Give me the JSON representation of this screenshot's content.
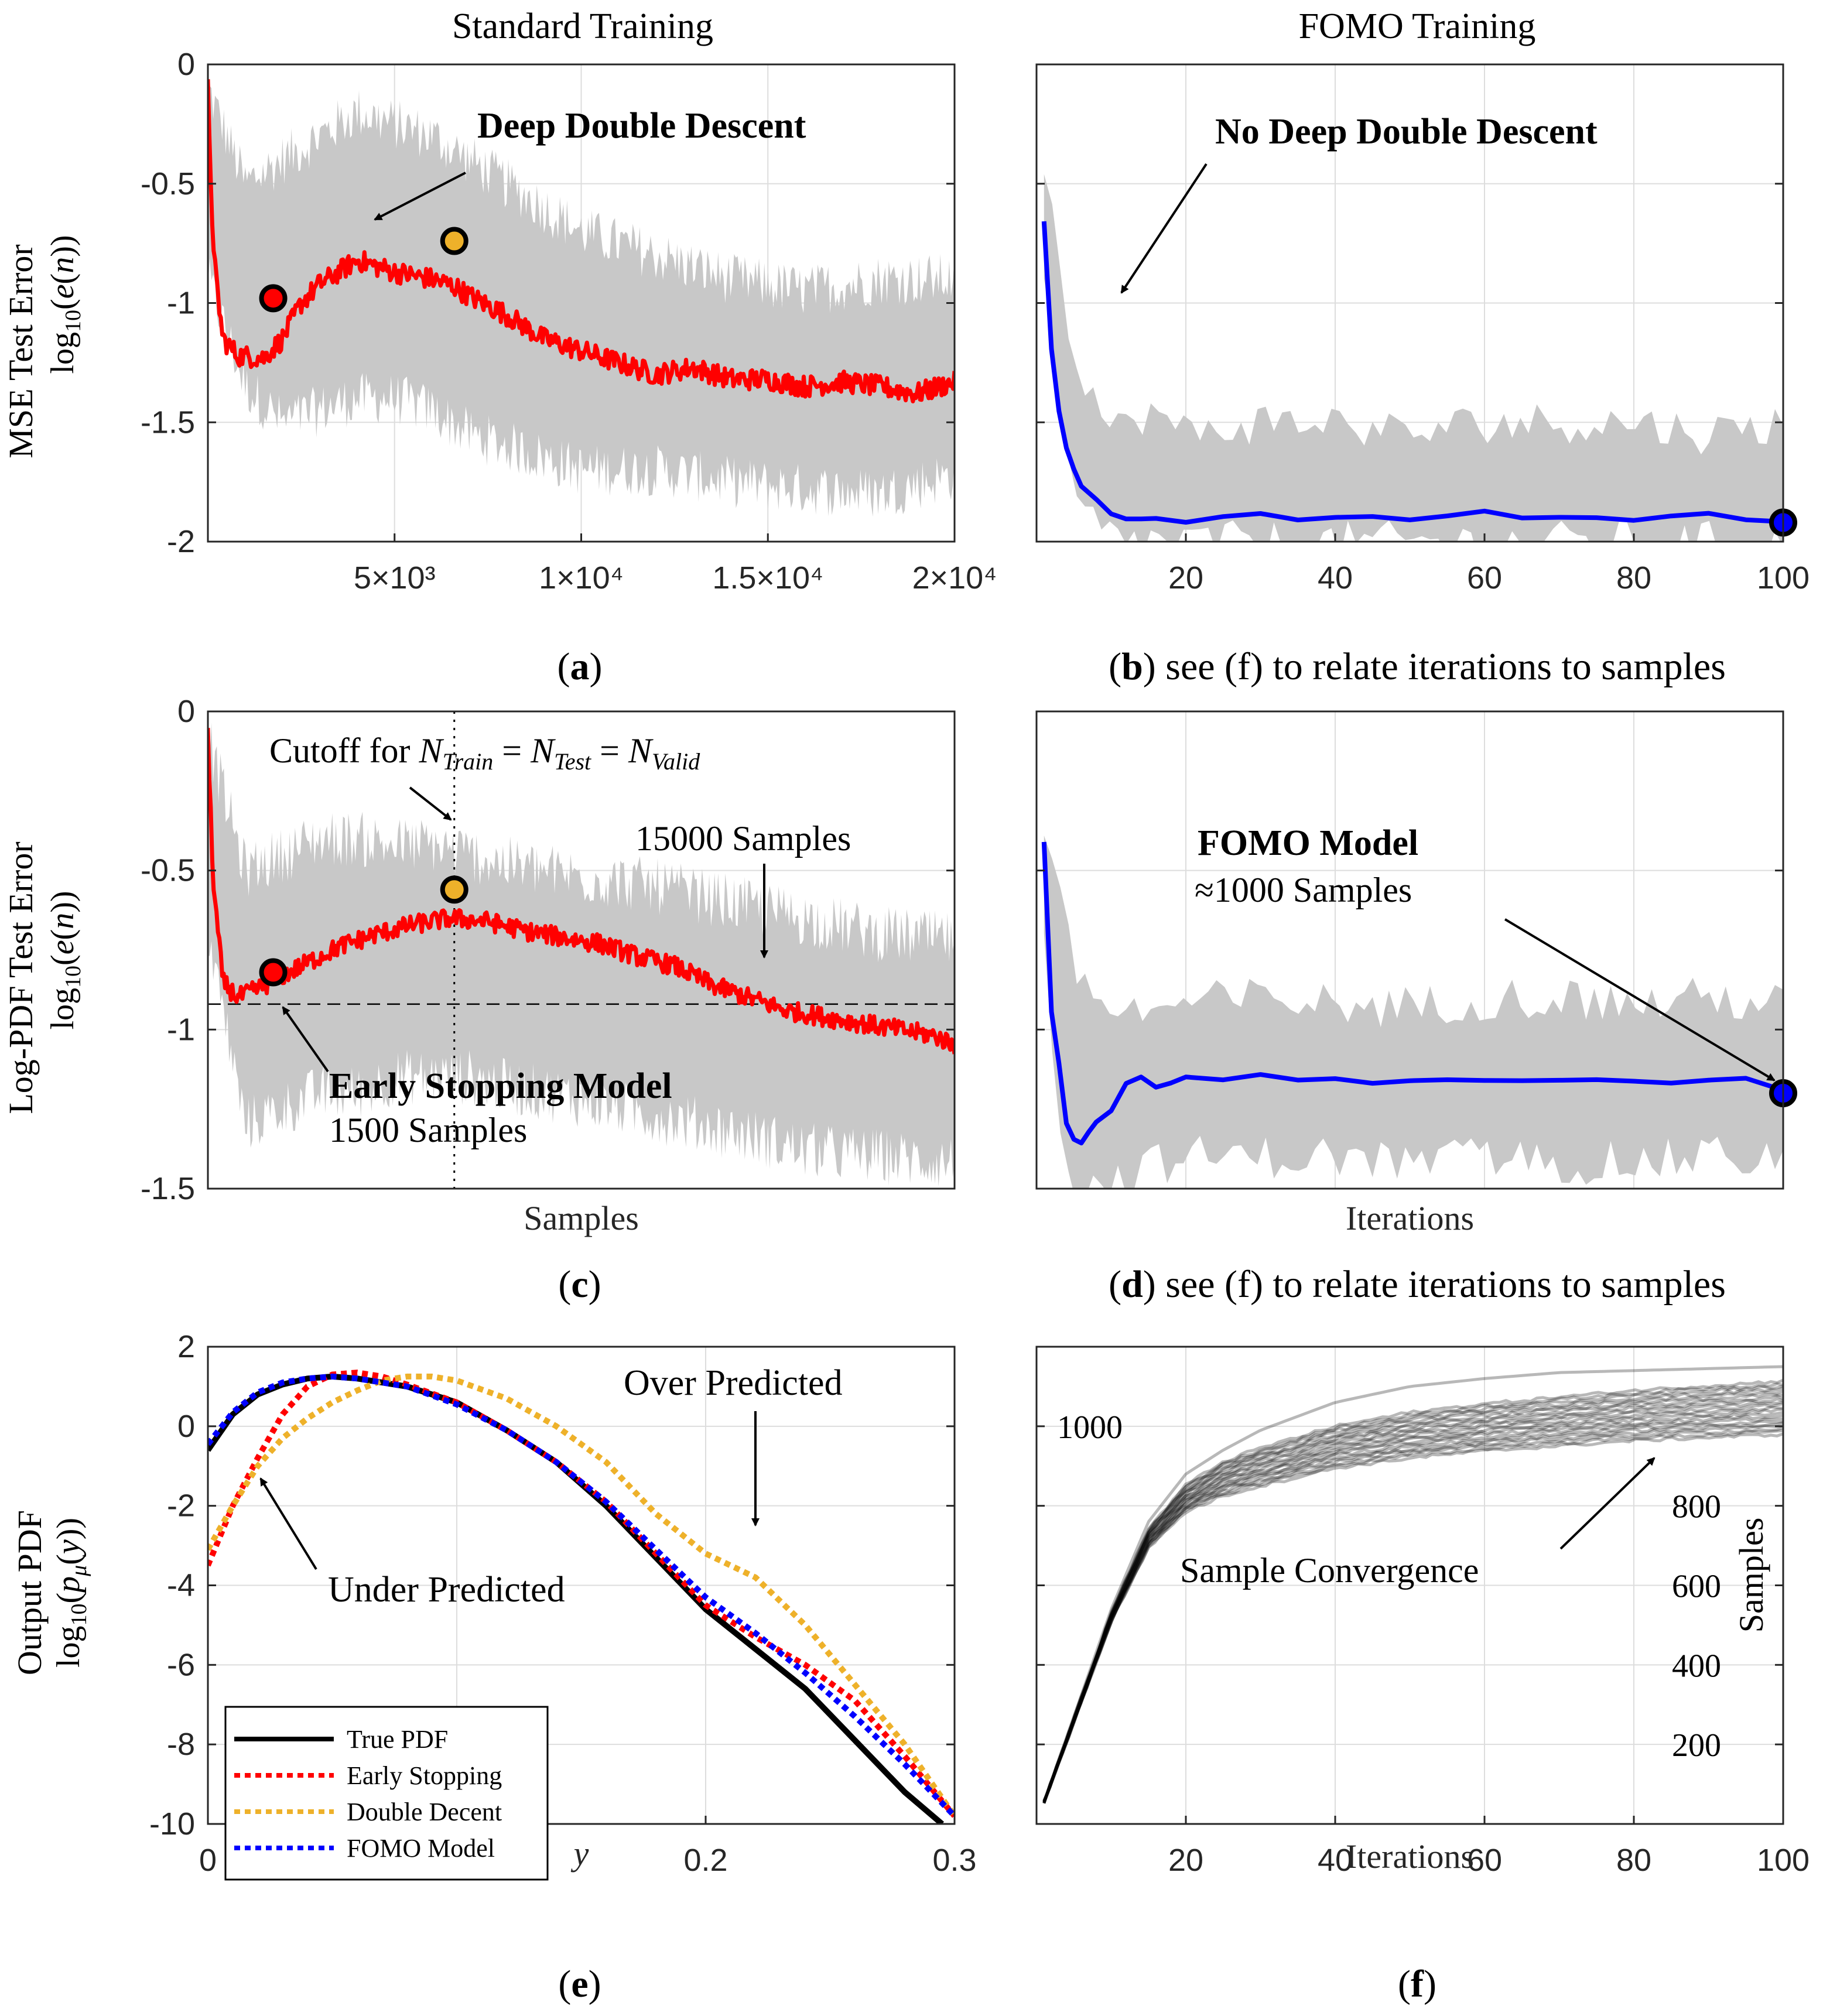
{
  "columns": {
    "left_title": "Standard Training",
    "right_title": "FOMO Training"
  },
  "colors": {
    "red": "#ff0000",
    "blue": "#0000ff",
    "orange": "#eeb12a",
    "gray_band": "#c8c8c8",
    "black": "#000000",
    "grid": "#dddddd"
  },
  "chart_data": [
    {
      "id": "a",
      "type": "line",
      "title": "",
      "ylabel_line1": "MSE Test Error",
      "ylabel_line2": "log10(e(n))",
      "xlabel": "",
      "xlim": [
        0,
        20000
      ],
      "ylim": [
        -2,
        0
      ],
      "yticks": [
        "0",
        "-0.5",
        "-1",
        "-1.5",
        "-2"
      ],
      "yticks_values": [
        0,
        -0.5,
        -1,
        -1.5,
        -2
      ],
      "xticks": [
        "5×10³",
        "1×10⁴",
        "1.5×10⁴",
        "2×10⁴"
      ],
      "xticks_values": [
        5000,
        10000,
        15000,
        20000
      ],
      "series": [
        {
          "name": "Standard training MSE",
          "color": "#ff0000",
          "x": [
            0,
            150,
            400,
            800,
            1500,
            2000,
            2500,
            3000,
            4000,
            5000,
            6000,
            6600,
            7000,
            8000,
            9000,
            10000,
            11000,
            12000,
            13000,
            14000,
            15000,
            16000,
            17000,
            18000,
            19000,
            20000
          ],
          "y": [
            -0.1,
            -0.8,
            -1.15,
            -1.22,
            -1.23,
            -1.15,
            -1.0,
            -0.92,
            -0.82,
            -0.87,
            -0.9,
            -0.93,
            -0.97,
            -1.05,
            -1.15,
            -1.2,
            -1.25,
            -1.3,
            -1.27,
            -1.32,
            -1.32,
            -1.35,
            -1.33,
            -1.35,
            -1.38,
            -1.33
          ]
        }
      ],
      "band": {
        "x": [
          0,
          1000,
          2000,
          3000,
          4000,
          5000,
          6000,
          7000,
          8000,
          9000,
          10000,
          12000,
          14000,
          16000,
          18000,
          20000
        ],
        "upper": [
          -0.1,
          -0.5,
          -0.4,
          -0.3,
          -0.2,
          -0.25,
          -0.3,
          -0.4,
          -0.5,
          -0.6,
          -0.7,
          -0.8,
          -0.9,
          -0.95,
          -0.9,
          -0.9
        ],
        "lower": [
          -0.9,
          -1.35,
          -1.5,
          -1.45,
          -1.4,
          -1.4,
          -1.45,
          -1.55,
          -1.6,
          -1.65,
          -1.7,
          -1.7,
          -1.75,
          -1.78,
          -1.8,
          -1.72
        ]
      },
      "markers": [
        {
          "x": 1750,
          "y": -0.98,
          "color": "#ff0000"
        },
        {
          "x": 6600,
          "y": -0.74,
          "color": "#eeb12a"
        }
      ],
      "annotations": [
        {
          "text": "Deep Double Descent",
          "bold": true
        }
      ]
    },
    {
      "id": "b",
      "type": "line",
      "ylabel_line1": "",
      "xlabel": "",
      "xlim": [
        0,
        100
      ],
      "ylim": [
        -2,
        0
      ],
      "xticks": [
        "20",
        "40",
        "60",
        "80",
        "100"
      ],
      "xticks_values": [
        20,
        40,
        60,
        80,
        100
      ],
      "series": [
        {
          "name": "FOMO MSE",
          "color": "#0000ff",
          "x": [
            1,
            2,
            3,
            4,
            5,
            6,
            8,
            10,
            12,
            14,
            16,
            20,
            25,
            30,
            35,
            40,
            45,
            50,
            55,
            60,
            65,
            70,
            75,
            80,
            85,
            90,
            95,
            100
          ],
          "y": [
            -0.65,
            -1.2,
            -1.45,
            -1.6,
            -1.7,
            -1.76,
            -1.83,
            -1.88,
            -1.9,
            -1.91,
            -1.9,
            -1.91,
            -1.9,
            -1.89,
            -1.9,
            -1.9,
            -1.89,
            -1.91,
            -1.89,
            -1.88,
            -1.9,
            -1.9,
            -1.89,
            -1.91,
            -1.9,
            -1.89,
            -1.9,
            -1.91
          ]
        }
      ],
      "band": {
        "x": [
          1,
          5,
          10,
          15,
          20,
          30,
          40,
          50,
          60,
          70,
          80,
          90,
          100
        ],
        "upper": [
          -0.4,
          -1.2,
          -1.55,
          -1.45,
          -1.55,
          -1.5,
          -1.5,
          -1.55,
          -1.5,
          -1.5,
          -1.5,
          -1.55,
          -1.5
        ],
        "lower": [
          -0.95,
          -1.85,
          -1.98,
          -2.0,
          -2.0,
          -2.0,
          -2.0,
          -2.0,
          -2.0,
          -2.0,
          -2.0,
          -2.0,
          -2.0
        ]
      },
      "markers": [
        {
          "x": 100,
          "y": -1.92,
          "color": "#0000ff"
        }
      ],
      "annotations": [
        {
          "text": "No Deep Double Descent",
          "bold": true
        }
      ]
    },
    {
      "id": "c",
      "type": "line",
      "ylabel_line1": "Log-PDF Test Error",
      "ylabel_line2": "log10(e(n))",
      "xlabel": "Samples",
      "xlim": [
        0,
        20000
      ],
      "ylim": [
        -1.5,
        0
      ],
      "yticks": [
        "0",
        "-0.5",
        "-1",
        "-1.5"
      ],
      "yticks_values": [
        0,
        -0.5,
        -1,
        -1.5
      ],
      "series": [
        {
          "name": "Standard training log-PDF",
          "color": "#ff0000",
          "x": [
            0,
            150,
            400,
            800,
            1200,
            1700,
            2500,
            3500,
            4500,
            5500,
            6500,
            7500,
            8500,
            9500,
            10500,
            11500,
            12500,
            13500,
            14500,
            15500,
            16500,
            17500,
            18500,
            19500,
            20000
          ],
          "y": [
            -0.08,
            -0.55,
            -0.85,
            -0.9,
            -0.88,
            -0.85,
            -0.8,
            -0.74,
            -0.7,
            -0.67,
            -0.65,
            -0.66,
            -0.69,
            -0.71,
            -0.73,
            -0.77,
            -0.8,
            -0.86,
            -0.9,
            -0.94,
            -0.96,
            -0.98,
            -1.0,
            -1.02,
            -1.05
          ]
        }
      ],
      "band": {
        "x": [
          0,
          1000,
          2000,
          3000,
          4000,
          5000,
          6000,
          7000,
          8000,
          9000,
          10000,
          12000,
          14000,
          16000,
          18000,
          20000
        ],
        "upper": [
          -0.08,
          -0.5,
          -0.45,
          -0.4,
          -0.4,
          -0.42,
          -0.42,
          -0.45,
          -0.48,
          -0.5,
          -0.52,
          -0.55,
          -0.6,
          -0.65,
          -0.7,
          -0.72
        ],
        "lower": [
          -0.7,
          -1.3,
          -1.25,
          -1.2,
          -1.2,
          -1.15,
          -1.15,
          -1.15,
          -1.18,
          -1.2,
          -1.22,
          -1.27,
          -1.32,
          -1.38,
          -1.4,
          -1.42
        ]
      },
      "markers": [
        {
          "x": 1750,
          "y": -0.82,
          "color": "#ff0000"
        },
        {
          "x": 6600,
          "y": -0.56,
          "color": "#eeb12a"
        }
      ],
      "reference_lines": {
        "hline_y": -0.92,
        "vline_x": 6600
      },
      "annotations": [
        {
          "text": "Cutoff for",
          "math": "N_Train = N_Test = N_Valid"
        },
        {
          "text": "15000 Samples"
        },
        {
          "text": "Early Stopping Model",
          "bold": true
        },
        {
          "text": "1500 Samples"
        }
      ]
    },
    {
      "id": "d",
      "type": "line",
      "xlabel": "Iterations",
      "xlim": [
        0,
        100
      ],
      "ylim": [
        -1.5,
        0
      ],
      "series": [
        {
          "name": "FOMO log-PDF",
          "color": "#0000ff",
          "x": [
            1,
            2,
            3,
            4,
            5,
            6,
            7,
            8,
            10,
            12,
            14,
            16,
            18,
            20,
            25,
            30,
            35,
            40,
            45,
            50,
            55,
            60,
            65,
            70,
            75,
            80,
            85,
            90,
            95,
            100
          ],
          "y": [
            -0.42,
            -0.95,
            -1.1,
            -1.3,
            -1.35,
            -1.35,
            -1.33,
            -1.3,
            -1.25,
            -1.18,
            -1.15,
            -1.17,
            -1.16,
            -1.15,
            -1.16,
            -1.15,
            -1.17,
            -1.15,
            -1.16,
            -1.17,
            -1.15,
            -1.16,
            -1.17,
            -1.16,
            -1.15,
            -1.17,
            -1.16,
            -1.17,
            -1.15,
            -1.2
          ]
        }
      ],
      "band": {
        "x": [
          1,
          3,
          5,
          8,
          12,
          20,
          30,
          40,
          50,
          60,
          70,
          80,
          90,
          100
        ],
        "upper": [
          -0.35,
          -0.6,
          -0.8,
          -0.9,
          -0.95,
          -0.92,
          -0.9,
          -0.92,
          -0.93,
          -0.9,
          -0.9,
          -0.92,
          -0.9,
          -0.92
        ],
        "lower": [
          -0.65,
          -1.3,
          -1.5,
          -1.5,
          -1.45,
          -1.4,
          -1.4,
          -1.4,
          -1.42,
          -1.4,
          -1.42,
          -1.42,
          -1.4,
          -1.4
        ]
      },
      "markers": [
        {
          "x": 100,
          "y": -1.2,
          "color": "#0000ff"
        }
      ],
      "annotations": [
        {
          "text": "FOMO Model",
          "bold": true
        },
        {
          "text": "≈1000 Samples"
        }
      ]
    },
    {
      "id": "e",
      "type": "line",
      "ylabel_line1": "Output PDF",
      "ylabel_line2": "log10(pμ(y))",
      "xlabel": "y",
      "xlim": [
        0,
        0.3
      ],
      "ylim": [
        -10,
        2
      ],
      "yticks": [
        "2",
        "0",
        "-2",
        "-4",
        "-6",
        "-8",
        "-10"
      ],
      "yticks_values": [
        2,
        0,
        -2,
        -4,
        -6,
        -8,
        -10
      ],
      "xticks": [
        "0",
        "0.1",
        "0.2",
        "0.3"
      ],
      "xticks_values": [
        0,
        0.1,
        0.2,
        0.3
      ],
      "series": [
        {
          "name": "True PDF",
          "color": "#000000",
          "dash": false,
          "x": [
            0,
            0.01,
            0.02,
            0.03,
            0.04,
            0.05,
            0.06,
            0.08,
            0.1,
            0.12,
            0.14,
            0.16,
            0.18,
            0.2,
            0.22,
            0.24,
            0.26,
            0.28,
            0.295
          ],
          "y": [
            -0.6,
            0.3,
            0.8,
            1.05,
            1.2,
            1.25,
            1.2,
            1.0,
            0.6,
            -0.1,
            -0.9,
            -2.0,
            -3.3,
            -4.6,
            -5.6,
            -6.6,
            -7.9,
            -9.2,
            -10.0
          ]
        },
        {
          "name": "Early Stopping",
          "color": "#ff0000",
          "dash": true,
          "x": [
            0,
            0.01,
            0.02,
            0.03,
            0.04,
            0.05,
            0.06,
            0.07,
            0.08,
            0.1,
            0.12,
            0.14,
            0.16,
            0.18,
            0.2,
            0.22,
            0.24,
            0.26,
            0.28,
            0.3
          ],
          "y": [
            -3.5,
            -2.0,
            -0.8,
            0.3,
            1.0,
            1.3,
            1.35,
            1.25,
            1.05,
            0.6,
            -0.1,
            -0.9,
            -1.9,
            -3.2,
            -4.5,
            -5.3,
            -6.0,
            -6.9,
            -8.3,
            -9.8
          ]
        },
        {
          "name": "Double Decent",
          "color": "#eeb12a",
          "dash": true,
          "x": [
            0,
            0.01,
            0.02,
            0.03,
            0.04,
            0.05,
            0.06,
            0.07,
            0.08,
            0.09,
            0.1,
            0.12,
            0.14,
            0.16,
            0.18,
            0.2,
            0.22,
            0.24,
            0.26,
            0.28,
            0.3
          ],
          "y": [
            -3.1,
            -2.0,
            -1.0,
            -0.3,
            0.2,
            0.6,
            0.9,
            1.15,
            1.25,
            1.25,
            1.15,
            0.7,
            0.0,
            -0.9,
            -2.2,
            -3.2,
            -3.8,
            -5.0,
            -6.5,
            -8.0,
            -9.8
          ]
        },
        {
          "name": "FOMO Model",
          "color": "#0000ff",
          "dash": true,
          "x": [
            0,
            0.01,
            0.02,
            0.03,
            0.04,
            0.05,
            0.06,
            0.08,
            0.1,
            0.12,
            0.14,
            0.16,
            0.18,
            0.2,
            0.22,
            0.24,
            0.26,
            0.28,
            0.3
          ],
          "y": [
            -0.45,
            0.35,
            0.85,
            1.1,
            1.2,
            1.25,
            1.2,
            1.0,
            0.55,
            -0.1,
            -0.9,
            -1.9,
            -3.1,
            -4.3,
            -5.2,
            -6.2,
            -7.3,
            -8.5,
            -9.8
          ]
        }
      ],
      "legend": {
        "placement": "bottom-left",
        "entries": [
          "True PDF",
          "Early Stopping",
          "Double Decent",
          "FOMO Model"
        ]
      },
      "annotations": [
        {
          "text": "Over Predicted"
        },
        {
          "text": "Under Predicted"
        }
      ]
    },
    {
      "id": "f",
      "type": "line",
      "xlabel": "Iterations",
      "ylabel": "Samples",
      "xlim": [
        0,
        100
      ],
      "ylim": [
        0,
        1200
      ],
      "xticks": [
        "20",
        "40",
        "60",
        "80",
        "100"
      ],
      "xticks_values": [
        20,
        40,
        60,
        80,
        100
      ],
      "yticks": [
        "200",
        "400",
        "600",
        "800",
        "1000"
      ],
      "yticks_values": [
        200,
        400,
        600,
        800,
        1000
      ],
      "bundle": {
        "count": 22,
        "color": "#000000",
        "x": [
          1,
          5,
          10,
          15,
          20,
          25,
          30,
          40,
          50,
          60,
          70,
          80,
          90,
          100
        ],
        "center": [
          55,
          260,
          520,
          720,
          820,
          870,
          900,
          950,
          980,
          1000,
          1015,
          1030,
          1040,
          1050
        ],
        "spread": [
          0,
          5,
          12,
          25,
          35,
          45,
          50,
          55,
          60,
          62,
          64,
          66,
          68,
          70
        ],
        "top": [
          55,
          270,
          540,
          760,
          880,
          940,
          990,
          1060,
          1100,
          1120,
          1135,
          1140,
          1145,
          1150
        ]
      },
      "annotations": [
        {
          "text": "Sample Convergence"
        }
      ]
    }
  ],
  "captions": {
    "a": "(a)",
    "b": "(b) see (f) to relate iterations to samples",
    "c": "(c)",
    "d": "(d) see (f) to relate iterations to samples",
    "e": "(e)",
    "f": "(f)"
  },
  "caption_parts": {
    "a_letter": "a",
    "b_letter": "b",
    "b_rest": " see (f) to relate iterations to samples",
    "c_letter": "c",
    "d_letter": "d",
    "d_rest": " see (f) to relate iterations to samples",
    "e_letter": "e",
    "f_letter": "f"
  }
}
